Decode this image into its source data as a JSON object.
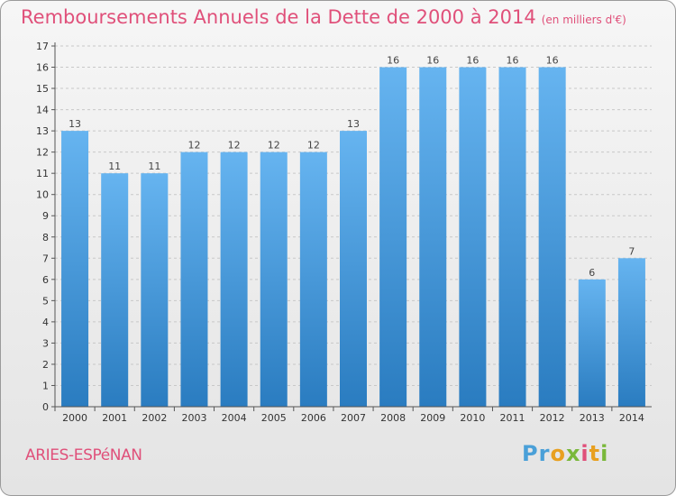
{
  "header": {
    "title": "Remboursements Annuels de la Dette de 2000 à 2014",
    "unit": "(en milliers d'€)"
  },
  "footer": {
    "city": "ARIES-ESPéNAN"
  },
  "logo": {
    "letters": [
      "P",
      "r",
      "o",
      "x",
      "i",
      "t",
      "i"
    ],
    "colors": [
      "#4aa0d8",
      "#4aa0d8",
      "#e8a020",
      "#7ab83a",
      "#e0507a",
      "#e8a020",
      "#7ab83a"
    ]
  },
  "colors": {
    "bar_light": "#66b4f0",
    "bar_dark": "#2a7cc0",
    "grid": "#c8c8c8",
    "axis": "#555555"
  },
  "chart_data": {
    "type": "bar",
    "title": "Remboursements Annuels de la Dette de 2000 à 2014",
    "xlabel": "",
    "ylabel": "en milliers d'€",
    "categories": [
      "2000",
      "2001",
      "2002",
      "2003",
      "2004",
      "2005",
      "2006",
      "2007",
      "2008",
      "2009",
      "2010",
      "2011",
      "2012",
      "2013",
      "2014"
    ],
    "values": [
      13,
      11,
      11,
      12,
      12,
      12,
      12,
      13,
      16,
      16,
      16,
      16,
      16,
      6,
      7
    ],
    "ylim": [
      0,
      17
    ],
    "yticks": [
      0,
      1,
      2,
      3,
      4,
      5,
      6,
      7,
      8,
      9,
      10,
      11,
      12,
      13,
      14,
      15,
      16,
      17
    ],
    "grid": true
  }
}
